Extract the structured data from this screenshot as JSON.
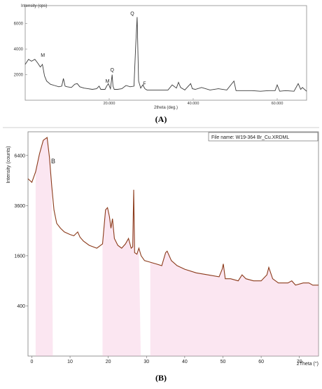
{
  "chart_data": [
    {
      "type": "line",
      "panel_label": "(A)",
      "ylabel": "Intensity (cps)",
      "xlabel": "2theta (deg.)",
      "xlim": [
        0,
        67
      ],
      "ylim": [
        0,
        7400
      ],
      "x_ticks": [
        {
          "value": 20,
          "label": "20.000"
        },
        {
          "value": 40,
          "label": "40.000"
        },
        {
          "value": 60,
          "label": "60.000"
        }
      ],
      "y_ticks": [
        {
          "value": 2000,
          "label": "2000"
        },
        {
          "value": 4000,
          "label": "4000"
        },
        {
          "value": 6000,
          "label": "6000"
        }
      ],
      "colors": {
        "line": "#3a3a3a"
      },
      "series": [
        {
          "x": [
            0,
            0.8,
            1.5,
            2.3,
            3.0,
            3.6,
            4.1,
            4.6,
            5.1,
            6.0,
            7.0,
            8.0,
            8.7,
            9.1,
            9.5,
            10.0,
            11.0,
            11.8,
            12.4,
            13.0,
            14.0,
            15.0,
            16.0,
            17.0,
            17.6,
            18.0,
            19.0,
            19.4,
            19.8,
            20.3,
            20.7,
            20.9,
            21.2,
            22.0,
            23.0,
            24.0,
            25.0,
            25.9,
            26.3,
            26.65,
            27.0,
            27.5,
            28.0,
            28.5,
            29.0,
            30.0,
            32.0,
            34.0,
            35.0,
            36.0,
            36.5,
            37.0,
            38.0,
            39.4,
            39.8,
            40.5,
            42.0,
            44.0,
            46.0,
            48.0,
            49.7,
            50.2,
            50.7,
            52.0,
            54.0,
            56.0,
            58.0,
            59.5,
            60.0,
            60.6,
            62.0,
            64.0,
            65.0,
            65.6,
            66.0,
            67.0
          ],
          "y": [
            2800,
            3200,
            3050,
            3200,
            2900,
            2600,
            2800,
            1900,
            1500,
            1250,
            1150,
            1050,
            1100,
            1700,
            1100,
            1050,
            1000,
            1250,
            1300,
            1050,
            950,
            900,
            850,
            900,
            1100,
            850,
            850,
            1100,
            1300,
            900,
            2000,
            1100,
            850,
            850,
            900,
            1150,
            1050,
            1100,
            4200,
            6500,
            1500,
            950,
            1200,
            900,
            800,
            800,
            800,
            800,
            1200,
            950,
            1400,
            1000,
            800,
            1300,
            900,
            850,
            1000,
            800,
            900,
            800,
            1500,
            750,
            750,
            750,
            750,
            700,
            750,
            750,
            1200,
            700,
            750,
            700,
            1300,
            850,
            1000,
            700
          ]
        }
      ],
      "annotations": [
        {
          "text": "M",
          "x": 4.2,
          "y": 3400
        },
        {
          "text": "M",
          "x": 19.6,
          "y": 1380
        },
        {
          "text": "Q",
          "x": 20.7,
          "y": 2250
        },
        {
          "text": "Q",
          "x": 25.5,
          "y": 6650
        },
        {
          "text": "F",
          "x": 28.4,
          "y": 1180
        }
      ]
    },
    {
      "type": "line",
      "panel_label": "(B)",
      "ylabel": "Intensity (counts)",
      "xlabel": "2Theta (°)",
      "file_name": "File name:  W19-364 Br_Cu.XRDML",
      "series_label": "B",
      "xlim": [
        -1,
        75
      ],
      "ylim": [
        0,
        8000
      ],
      "y_scale": "sqrt",
      "x_ticks": [
        {
          "value": 0,
          "label": "0"
        },
        {
          "value": 10,
          "label": "10"
        },
        {
          "value": 20,
          "label": "20"
        },
        {
          "value": 30,
          "label": "30"
        },
        {
          "value": 40,
          "label": "40"
        },
        {
          "value": 50,
          "label": "50"
        },
        {
          "value": 60,
          "label": "60"
        },
        {
          "value": 70,
          "label": "70"
        }
      ],
      "y_ticks": [
        {
          "value": 400,
          "label": "400"
        },
        {
          "value": 1600,
          "label": "1600"
        },
        {
          "value": 3600,
          "label": "3600"
        },
        {
          "value": 6400,
          "label": "6400"
        }
      ],
      "colors": {
        "line": "#8b3a1a",
        "shade": "#f4b8d8"
      },
      "series": [
        {
          "x": [
            -1,
            0,
            1,
            2,
            3,
            4,
            4.6,
            5.2,
            5.8,
            6.5,
            7.5,
            8.5,
            10,
            11,
            12,
            12.6,
            13.5,
            15,
            17,
            18.5,
            19.3,
            19.8,
            20.3,
            20.7,
            21.1,
            21.6,
            22.5,
            23.5,
            24.5,
            25.3,
            26.0,
            26.4,
            26.65,
            26.9,
            27.5,
            28.0,
            28.6,
            29.5,
            31,
            32.5,
            34,
            35,
            35.4,
            36.5,
            38,
            40,
            43,
            46,
            49,
            49.8,
            50.1,
            50.6,
            52,
            54,
            55,
            56,
            58,
            60,
            61.5,
            62.0,
            63.0,
            64.5,
            67,
            68,
            69,
            71,
            72.5,
            73.5,
            75
          ],
          "y": [
            5000,
            4800,
            5400,
            6500,
            7400,
            7600,
            6300,
            4600,
            3400,
            2800,
            2600,
            2450,
            2350,
            2300,
            2450,
            2250,
            2100,
            1950,
            1850,
            2000,
            3400,
            3500,
            3100,
            2600,
            3000,
            2200,
            1950,
            1850,
            2000,
            2200,
            1850,
            1900,
            4400,
            1700,
            1650,
            1850,
            1600,
            1450,
            1400,
            1350,
            1300,
            1700,
            1750,
            1450,
            1300,
            1200,
            1100,
            1050,
            1000,
            1200,
            1350,
            950,
            950,
            900,
            1050,
            950,
            900,
            900,
            1050,
            1250,
            950,
            850,
            850,
            900,
            800,
            850,
            850,
            800,
            800
          ]
        }
      ],
      "shade_ranges": [
        [
          1,
          5.5
        ],
        [
          17.5,
          28.5
        ],
        [
          30,
          75
        ]
      ]
    }
  ]
}
